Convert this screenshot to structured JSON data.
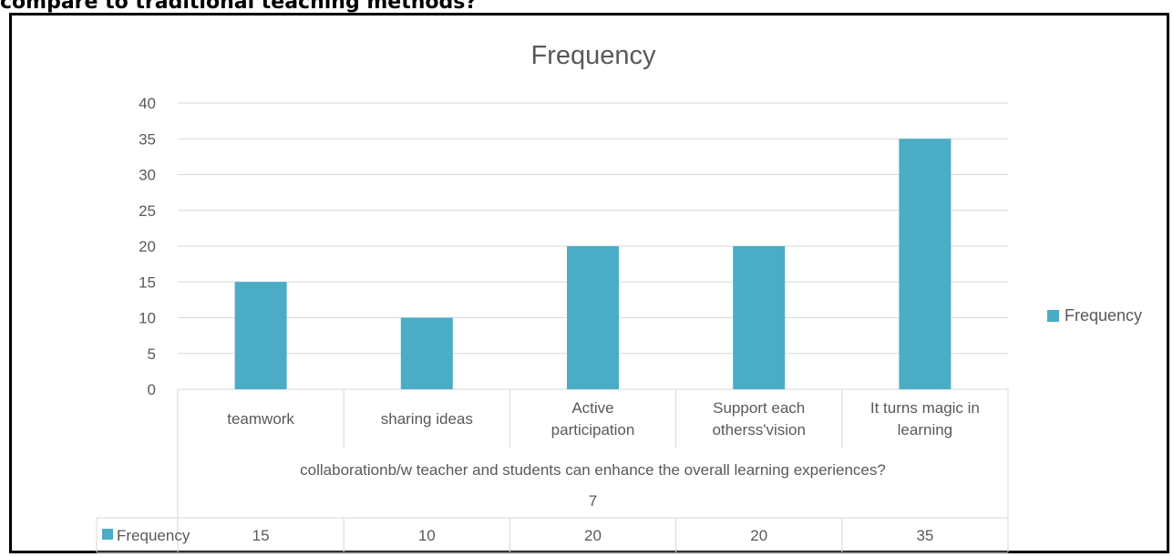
{
  "page": {
    "heading": "compare to traditional teaching methods?"
  },
  "chart_data": {
    "type": "bar",
    "title": "Frequency",
    "categories": [
      "teamwork",
      "sharing ideas",
      "Active participation",
      "Support each otherss'vision",
      "It turns magic in learning"
    ],
    "category_lines": [
      [
        "teamwork"
      ],
      [
        "sharing ideas"
      ],
      [
        "Active",
        "participation"
      ],
      [
        "Support each",
        "otherss'vision"
      ],
      [
        "It turns magic in",
        "learning"
      ]
    ],
    "group_label": "collaborationb/w teacher and students can enhance the overall learning experiences?",
    "group_sublabel": "7",
    "series": [
      {
        "name": "Frequency",
        "values": [
          15,
          10,
          20,
          20,
          35
        ]
      }
    ],
    "ylim": [
      0,
      40
    ],
    "yticks": [
      0,
      5,
      10,
      15,
      20,
      25,
      30,
      35,
      40
    ],
    "grid": true,
    "legend_position": "right",
    "data_table": true,
    "colors": {
      "bar": "#4BACC6",
      "grid": "#D9D9D9",
      "text": "#595959"
    }
  }
}
